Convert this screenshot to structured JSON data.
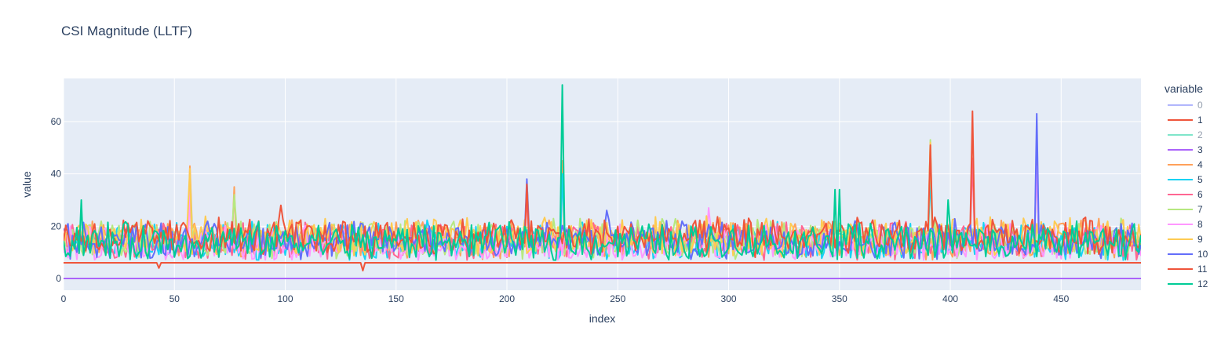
{
  "chart_data": {
    "type": "line",
    "title": "CSI Magnitude (LLTF)",
    "xlabel": "index",
    "ylabel": "value",
    "xlim": [
      0,
      486
    ],
    "ylim": [
      -4.5,
      76.5
    ],
    "x_ticks": [
      0,
      50,
      100,
      150,
      200,
      250,
      300,
      350,
      400,
      450
    ],
    "y_ticks": [
      0,
      20,
      40,
      60
    ],
    "grid": true,
    "plot_background": "#e5ecf6",
    "legend": {
      "title": "variable",
      "placement": "right"
    },
    "series": [
      {
        "name": "0",
        "color": "#636efa",
        "constant": 0,
        "hidden": true
      },
      {
        "name": "1",
        "color": "#EF553B",
        "constant": 6,
        "spikes": [
          [
            135,
            3
          ],
          [
            43,
            4
          ]
        ]
      },
      {
        "name": "2",
        "color": "#00cc96",
        "constant": 0,
        "hidden": true
      },
      {
        "name": "3",
        "color": "#ab63fa",
        "constant": 0
      },
      {
        "name": "4",
        "color": "#FFA15A",
        "base": 15,
        "spikes": [
          [
            57,
            43
          ],
          [
            77,
            35
          ],
          [
            209,
            37
          ],
          [
            225,
            45
          ]
        ]
      },
      {
        "name": "5",
        "color": "#19d3f3",
        "base": 14,
        "spikes": [
          [
            57,
            38
          ],
          [
            225,
            40
          ],
          [
            391,
            40
          ]
        ]
      },
      {
        "name": "6",
        "color": "#FF6692",
        "base": 14,
        "spikes": [
          [
            57,
            35
          ],
          [
            209,
            33
          ],
          [
            410,
            46
          ],
          [
            439,
            45
          ]
        ]
      },
      {
        "name": "7",
        "color": "#B6E880",
        "base": 15,
        "spikes": [
          [
            57,
            40
          ],
          [
            77,
            32
          ],
          [
            391,
            53
          ]
        ]
      },
      {
        "name": "8",
        "color": "#FF97FF",
        "base": 13,
        "spikes": [
          [
            57,
            33
          ],
          [
            291,
            27
          ],
          [
            439,
            43
          ]
        ]
      },
      {
        "name": "9",
        "color": "#FECB52",
        "base": 16,
        "spikes": [
          [
            57,
            42
          ],
          [
            391,
            52
          ]
        ]
      },
      {
        "name": "10",
        "color": "#636efa",
        "base": 15,
        "spikes": [
          [
            209,
            38
          ],
          [
            439,
            63
          ],
          [
            245,
            26
          ]
        ]
      },
      {
        "name": "11",
        "color": "#EF553B",
        "base": 16,
        "spikes": [
          [
            410,
            64
          ],
          [
            391,
            51
          ],
          [
            209,
            36
          ],
          [
            98,
            28
          ]
        ]
      },
      {
        "name": "12",
        "color": "#00cc96",
        "base": 14,
        "spikes": [
          [
            225,
            74
          ],
          [
            348,
            34
          ],
          [
            350,
            34
          ],
          [
            399,
            30
          ],
          [
            8,
            30
          ]
        ]
      }
    ]
  }
}
